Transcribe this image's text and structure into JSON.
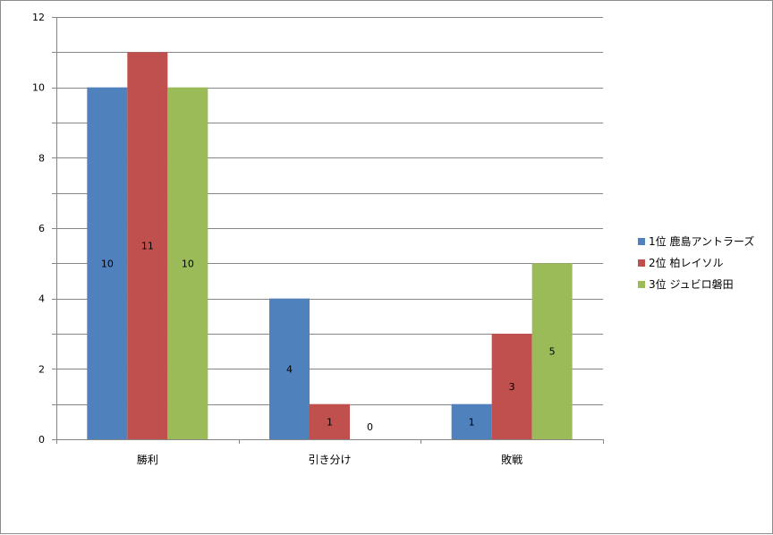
{
  "chart_data": {
    "type": "bar",
    "categories": [
      "勝利",
      "引き分け",
      "敗戦"
    ],
    "series": [
      {
        "name": "1位 鹿島アントラーズ",
        "values": [
          10,
          4,
          1
        ],
        "color": "#4F81BD"
      },
      {
        "name": "2位 柏レイソル",
        "values": [
          11,
          1,
          3
        ],
        "color": "#C0504D"
      },
      {
        "name": "3位 ジュビロ磐田",
        "values": [
          10,
          0,
          5
        ],
        "color": "#9BBB59"
      }
    ],
    "ylim": [
      0,
      12
    ],
    "yticks": [
      0,
      2,
      4,
      6,
      8,
      10,
      12
    ],
    "minor_gridlines_step": 1,
    "grid": true,
    "data_labels": true,
    "legend_position": "right",
    "title": "",
    "xlabel": "",
    "ylabel": ""
  },
  "colors": {
    "gridline": "#868686",
    "axis": "#868686",
    "border": "#8c8c8c"
  }
}
